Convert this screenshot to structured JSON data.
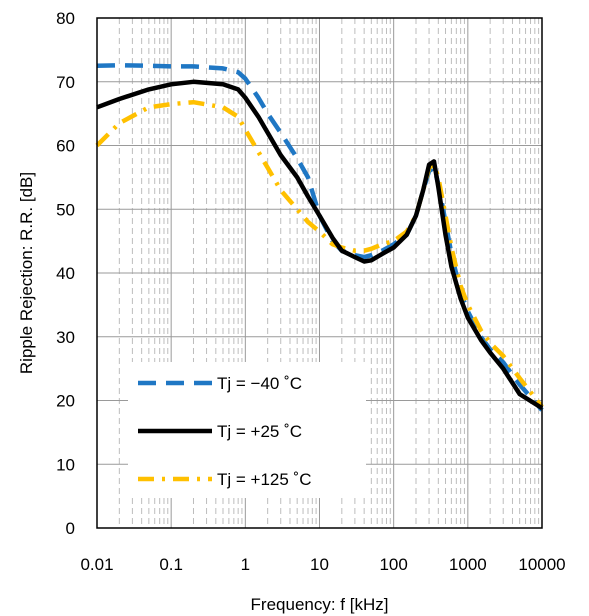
{
  "chart_data": {
    "type": "line",
    "xlabel": "Frequency: f [kHz]",
    "ylabel": "Ripple Rejection: R.R. [dB]",
    "xscale": "log",
    "xlim": [
      0.01,
      10000
    ],
    "ylim": [
      0,
      80
    ],
    "x_ticks": [
      "0.01",
      "0.1",
      "1",
      "10",
      "100",
      "1000",
      "10000"
    ],
    "y_ticks": [
      "0",
      "10",
      "20",
      "30",
      "40",
      "50",
      "60",
      "70",
      "80"
    ],
    "grid": true,
    "legend_position": "bottom-left",
    "series": [
      {
        "name": "Tj = −40 ˚C",
        "color": "#1f77c4",
        "style": "dashed",
        "x": [
          0.01,
          0.02,
          0.05,
          0.1,
          0.2,
          0.5,
          0.8,
          1,
          1.5,
          2,
          3,
          5,
          7,
          10,
          15,
          20,
          30,
          40,
          50,
          70,
          100,
          150,
          200,
          250,
          300,
          350,
          400,
          500,
          600,
          800,
          1000,
          1500,
          2000,
          3000,
          5000,
          10000
        ],
        "y": [
          72.5,
          72.6,
          72.5,
          72.4,
          72.4,
          72.1,
          71.5,
          70.5,
          67.5,
          65,
          62,
          58,
          55,
          49,
          45,
          43.5,
          42.8,
          42.5,
          42.8,
          43.5,
          44.5,
          46,
          49,
          53,
          56,
          56.5,
          54,
          48,
          43,
          37,
          34,
          30,
          28,
          26,
          22.5,
          18.5
        ]
      },
      {
        "name": "Tj = +25 ˚C",
        "color": "#000000",
        "style": "solid",
        "x": [
          0.01,
          0.02,
          0.05,
          0.1,
          0.2,
          0.5,
          0.8,
          1,
          1.5,
          2,
          3,
          5,
          7,
          10,
          15,
          20,
          30,
          40,
          50,
          70,
          100,
          150,
          200,
          250,
          300,
          350,
          400,
          500,
          600,
          800,
          1000,
          1500,
          2000,
          3000,
          5000,
          10000
        ],
        "y": [
          66,
          67.3,
          68.8,
          69.6,
          70,
          69.6,
          68.8,
          67.5,
          64.5,
          62,
          58.5,
          55,
          52,
          49,
          45.5,
          43.5,
          42.5,
          41.8,
          42,
          43,
          44,
          46,
          49,
          53,
          57,
          57.5,
          53.5,
          46,
          41,
          36,
          33,
          29.5,
          27.5,
          25,
          21,
          18.8
        ]
      },
      {
        "name": "Tj = +125 ˚C",
        "color": "#ffc000",
        "style": "dashdot",
        "x": [
          0.01,
          0.02,
          0.05,
          0.1,
          0.2,
          0.5,
          0.8,
          1,
          1.5,
          2,
          3,
          5,
          7,
          10,
          15,
          20,
          30,
          40,
          50,
          70,
          100,
          150,
          200,
          250,
          300,
          350,
          400,
          500,
          600,
          800,
          1000,
          1500,
          2000,
          3000,
          5000,
          10000
        ],
        "y": [
          60,
          63.5,
          66,
          66.5,
          66.8,
          66,
          64.5,
          62.5,
          59,
          56.5,
          53,
          50,
          48,
          46.5,
          44.5,
          44,
          43.5,
          43.5,
          43.8,
          44.5,
          45,
          46.5,
          49,
          53,
          56.5,
          57,
          55,
          49,
          44,
          38,
          35,
          31,
          29,
          27,
          23.5,
          19
        ]
      }
    ]
  }
}
